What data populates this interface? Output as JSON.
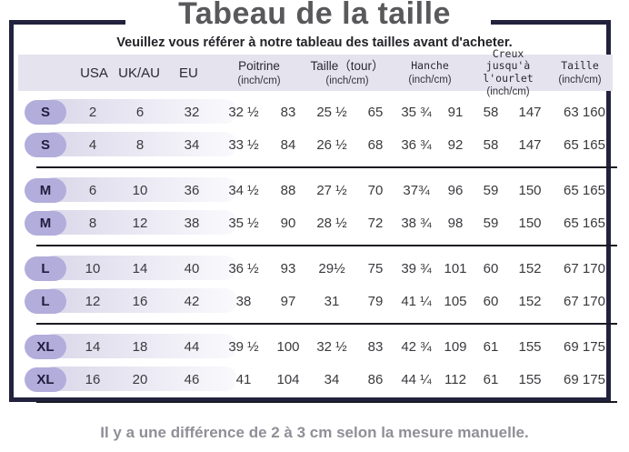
{
  "title": "Tabeau de la taille",
  "subtitle": "Veuillez vous référer à notre tableau des tailles avant d'acheter.",
  "footer": "Il y a une différence de 2 à 3 cm selon la mesure manuelle.",
  "colors": {
    "frame_navy": "#22223e",
    "badge_lavender": "#b2addb",
    "band_lavender": "#d9d7e9",
    "header_band": "#e4e3ee",
    "footer_gray": "#8f8f97"
  },
  "table": {
    "headers": {
      "usa": "USA",
      "uk_au": "UK/AU",
      "eu": "EU",
      "pairs": [
        {
          "key": "poitrine",
          "name": "Poitrine",
          "sub": "(inch/cm)",
          "mono": false
        },
        {
          "key": "taille-tour",
          "name": "Taille（tour）",
          "sub": "(inch/cm)",
          "mono": false
        },
        {
          "key": "hanche",
          "name": "Hanche",
          "sub": "(inch/cm)",
          "mono": true
        },
        {
          "key": "creux-ourlet",
          "name": "Creux jusqu'à\nl'ourlet",
          "sub": "(inch/cm)",
          "mono": true
        },
        {
          "key": "taille",
          "name": "Taille",
          "sub": "(inch/cm)",
          "mono": true
        }
      ]
    },
    "groups": [
      {
        "rows": [
          {
            "size": "S",
            "usa": "2",
            "uk_au": "6",
            "eu": "32",
            "poitrine_in": "32 ½",
            "poitrine_cm": "83",
            "taille_in": "25 ½",
            "taille_cm": "65",
            "hanche_in": "35 ¾",
            "hanche_cm": "91",
            "creux_in": "58",
            "creux_cm": "147",
            "taille2": "63 160"
          },
          {
            "size": "S",
            "usa": "4",
            "uk_au": "8",
            "eu": "34",
            "poitrine_in": "33 ½",
            "poitrine_cm": "84",
            "taille_in": "26 ½",
            "taille_cm": "68",
            "hanche_in": "36 ¾",
            "hanche_cm": "92",
            "creux_in": "58",
            "creux_cm": "147",
            "taille2": "65 165"
          }
        ]
      },
      {
        "rows": [
          {
            "size": "M",
            "usa": "6",
            "uk_au": "10",
            "eu": "36",
            "poitrine_in": "34 ½",
            "poitrine_cm": "88",
            "taille_in": "27 ½",
            "taille_cm": "70",
            "hanche_in": "37¾",
            "hanche_cm": "96",
            "creux_in": "59",
            "creux_cm": "150",
            "taille2": "65 165"
          },
          {
            "size": "M",
            "usa": "8",
            "uk_au": "12",
            "eu": "38",
            "poitrine_in": "35 ½",
            "poitrine_cm": "90",
            "taille_in": "28 ½",
            "taille_cm": "72",
            "hanche_in": "38 ¾",
            "hanche_cm": "98",
            "creux_in": "59",
            "creux_cm": "150",
            "taille2": "65 165"
          }
        ]
      },
      {
        "rows": [
          {
            "size": "L",
            "usa": "10",
            "uk_au": "14",
            "eu": "40",
            "poitrine_in": "36 ½",
            "poitrine_cm": "93",
            "taille_in": "29½",
            "taille_cm": "75",
            "hanche_in": "39 ¾",
            "hanche_cm": "101",
            "creux_in": "60",
            "creux_cm": "152",
            "taille2": "67 170"
          },
          {
            "size": "L",
            "usa": "12",
            "uk_au": "16",
            "eu": "42",
            "poitrine_in": "38",
            "poitrine_cm": "97",
            "taille_in": "31",
            "taille_cm": "79",
            "hanche_in": "41 ¼",
            "hanche_cm": "105",
            "creux_in": "60",
            "creux_cm": "152",
            "taille2": "67 170"
          }
        ]
      },
      {
        "rows": [
          {
            "size": "XL",
            "usa": "14",
            "uk_au": "18",
            "eu": "44",
            "poitrine_in": "39 ½",
            "poitrine_cm": "100",
            "taille_in": "32 ½",
            "taille_cm": "83",
            "hanche_in": "42 ¾",
            "hanche_cm": "109",
            "creux_in": "61",
            "creux_cm": "155",
            "taille2": "69 175"
          },
          {
            "size": "XL",
            "usa": "16",
            "uk_au": "20",
            "eu": "46",
            "poitrine_in": "41",
            "poitrine_cm": "104",
            "taille_in": "34",
            "taille_cm": "86",
            "hanche_in": "44 ¼",
            "hanche_cm": "112",
            "creux_in": "61",
            "creux_cm": "155",
            "taille2": "69 175"
          }
        ]
      }
    ]
  }
}
